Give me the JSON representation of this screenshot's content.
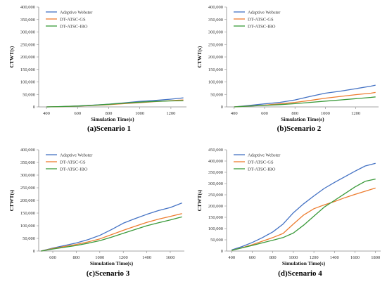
{
  "colors": {
    "adaptive": "#4472C4",
    "gs": "#ED7D31",
    "ibo": "#3A9A3A",
    "axis": "#888888"
  },
  "chart_data": [
    {
      "type": "line",
      "caption": "(a)Scenario 1",
      "xlabel": "Simulation Time(s)",
      "ylabel": "CTWT(s)",
      "xlim": [
        350,
        1300
      ],
      "xticks": [
        400,
        600,
        800,
        1000,
        1200
      ],
      "ylim": [
        0,
        400000
      ],
      "yticks": [
        0,
        50000,
        100000,
        150000,
        200000,
        250000,
        300000,
        350000,
        400000
      ],
      "ytick_labels": [
        "0",
        "50,000",
        "100,000",
        "150,000",
        "200,000",
        "250,000",
        "300,000",
        "350,000",
        "400,000"
      ],
      "series": [
        {
          "name": "Adaptive Webster",
          "color_key": "adaptive",
          "x": [
            400,
            500,
            600,
            700,
            800,
            900,
            1000,
            1100,
            1200,
            1280
          ],
          "y": [
            0,
            1500,
            4000,
            7000,
            11000,
            16000,
            22000,
            26000,
            31000,
            36000
          ]
        },
        {
          "name": "DT-ATSC-GS",
          "color_key": "gs",
          "x": [
            400,
            500,
            600,
            700,
            800,
            900,
            1000,
            1100,
            1200,
            1280
          ],
          "y": [
            0,
            1200,
            3000,
            5500,
            9000,
            13000,
            17000,
            21000,
            25000,
            28000
          ]
        },
        {
          "name": "DT-ATSC-IBO",
          "color_key": "ibo",
          "x": [
            400,
            500,
            600,
            700,
            800,
            900,
            1000,
            1100,
            1200,
            1280
          ],
          "y": [
            0,
            1300,
            3500,
            6500,
            10500,
            15000,
            19000,
            22000,
            24000,
            25000
          ]
        }
      ]
    },
    {
      "type": "line",
      "caption": "(b)Scenario 2",
      "xlabel": "Simulation Time(s)",
      "ylabel": "CTWT(s)",
      "xlim": [
        350,
        1350
      ],
      "xticks": [
        400,
        600,
        800,
        1000,
        1200
      ],
      "ylim": [
        0,
        400000
      ],
      "yticks": [
        0,
        50000,
        100000,
        150000,
        200000,
        250000,
        300000,
        350000,
        400000
      ],
      "ytick_labels": [
        "0",
        "50,000",
        "100,000",
        "150,000",
        "200,000",
        "250,000",
        "300,000",
        "350,000",
        "400,000"
      ],
      "series": [
        {
          "name": "Adaptive Webster",
          "color_key": "adaptive",
          "x": [
            400,
            500,
            600,
            700,
            800,
            900,
            1000,
            1100,
            1200,
            1300,
            1330
          ],
          "y": [
            0,
            6000,
            12000,
            18000,
            28000,
            42000,
            55000,
            63000,
            73000,
            83000,
            87000
          ]
        },
        {
          "name": "DT-ATSC-GS",
          "color_key": "gs",
          "x": [
            400,
            500,
            600,
            700,
            800,
            900,
            1000,
            1100,
            1200,
            1300,
            1330
          ],
          "y": [
            0,
            3500,
            7000,
            12000,
            18000,
            26000,
            35000,
            42000,
            49000,
            55000,
            58000
          ]
        },
        {
          "name": "DT-ATSC-IBO",
          "color_key": "ibo",
          "x": [
            400,
            500,
            600,
            700,
            800,
            900,
            1000,
            1100,
            1200,
            1300,
            1330
          ],
          "y": [
            0,
            3000,
            6000,
            9000,
            13000,
            18000,
            23000,
            28000,
            33000,
            38000,
            40000
          ]
        }
      ]
    },
    {
      "type": "line",
      "caption": "(c)Scenario 3",
      "xlabel": "Simulation Time(s)",
      "ylabel": "CTWT(s)",
      "xlim": [
        480,
        1720
      ],
      "xticks": [
        600,
        800,
        1000,
        1200,
        1400,
        1600
      ],
      "ylim": [
        0,
        400000
      ],
      "yticks": [
        0,
        50000,
        100000,
        150000,
        200000,
        250000,
        300000,
        350000,
        400000
      ],
      "ytick_labels": [
        "0",
        "50,000",
        "100,000",
        "150,000",
        "200,000",
        "250,000",
        "300,000",
        "350,000",
        "400,000"
      ],
      "series": [
        {
          "name": "Adaptive Webster",
          "color_key": "adaptive",
          "x": [
            500,
            600,
            700,
            800,
            900,
            1000,
            1100,
            1200,
            1300,
            1400,
            1500,
            1600,
            1700
          ],
          "y": [
            0,
            12000,
            22000,
            32000,
            45000,
            62000,
            85000,
            110000,
            128000,
            145000,
            160000,
            172000,
            190000
          ]
        },
        {
          "name": "DT-ATSC-GS",
          "color_key": "gs",
          "x": [
            500,
            600,
            700,
            800,
            900,
            1000,
            1100,
            1200,
            1300,
            1400,
            1500,
            1600,
            1700
          ],
          "y": [
            0,
            10000,
            18000,
            26000,
            36000,
            48000,
            65000,
            82000,
            98000,
            113000,
            126000,
            137000,
            148000
          ]
        },
        {
          "name": "DT-ATSC-IBO",
          "color_key": "ibo",
          "x": [
            500,
            600,
            700,
            800,
            900,
            1000,
            1100,
            1200,
            1300,
            1400,
            1500,
            1600,
            1700
          ],
          "y": [
            0,
            8000,
            15000,
            22000,
            31000,
            41000,
            55000,
            70000,
            85000,
            100000,
            112000,
            123000,
            135000
          ]
        }
      ]
    },
    {
      "type": "line",
      "caption": "(d)Scenario 4",
      "xlabel": "Simulation Time(s)",
      "ylabel": "CTWT(s)",
      "xlim": [
        350,
        1850
      ],
      "xticks": [
        400,
        600,
        800,
        1000,
        1200,
        1400,
        1600,
        1800
      ],
      "ylim": [
        0,
        450000
      ],
      "yticks": [
        0,
        50000,
        100000,
        150000,
        200000,
        250000,
        300000,
        350000,
        400000,
        450000
      ],
      "ytick_labels": [
        "0",
        "50,000",
        "100,000",
        "150,000",
        "200,000",
        "250,000",
        "300,000",
        "350,000",
        "400,000",
        "450,000"
      ],
      "series": [
        {
          "name": "Adaptive Webster",
          "color_key": "adaptive",
          "x": [
            400,
            500,
            600,
            700,
            800,
            900,
            1000,
            1100,
            1200,
            1300,
            1400,
            1500,
            1600,
            1700,
            1800
          ],
          "y": [
            5000,
            20000,
            38000,
            60000,
            85000,
            120000,
            170000,
            210000,
            245000,
            278000,
            305000,
            330000,
            355000,
            378000,
            390000
          ]
        },
        {
          "name": "DT-ATSC-GS",
          "color_key": "gs",
          "x": [
            400,
            500,
            600,
            700,
            800,
            900,
            1000,
            1100,
            1200,
            1300,
            1400,
            1500,
            1600,
            1700,
            1800
          ],
          "y": [
            3000,
            15000,
            28000,
            44000,
            60000,
            78000,
            120000,
            160000,
            188000,
            205000,
            220000,
            237000,
            252000,
            266000,
            280000
          ]
        },
        {
          "name": "DT-ATSC-IBO",
          "color_key": "ibo",
          "x": [
            400,
            500,
            600,
            700,
            800,
            900,
            1000,
            1100,
            1200,
            1300,
            1400,
            1500,
            1600,
            1700,
            1800
          ],
          "y": [
            3000,
            14000,
            25000,
            37000,
            48000,
            60000,
            80000,
            115000,
            155000,
            195000,
            225000,
            255000,
            285000,
            310000,
            320000
          ]
        }
      ]
    }
  ]
}
